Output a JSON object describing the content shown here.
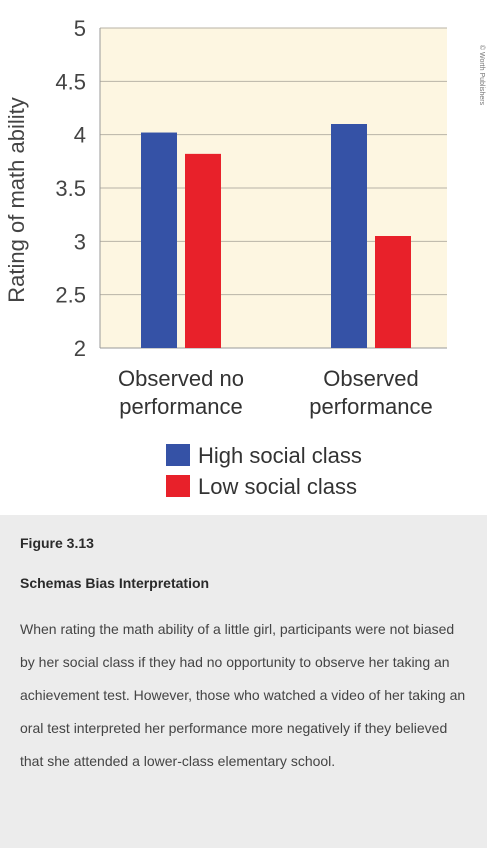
{
  "chart_data": {
    "type": "bar",
    "categories": [
      [
        "Observed no",
        "performance"
      ],
      [
        "Observed",
        "performance"
      ]
    ],
    "series": [
      {
        "name": "High social class",
        "color": "#3552a6",
        "values": [
          4.02,
          4.1
        ]
      },
      {
        "name": "Low social class",
        "color": "#e8212a",
        "values": [
          3.82,
          3.05
        ]
      }
    ],
    "ylabel": "Rating of math ability",
    "ylim": [
      2,
      5
    ],
    "yticks": [
      "2",
      "2.5",
      "3",
      "3.5",
      "4",
      "4.5",
      "5"
    ],
    "grid": true,
    "plot_background": "#fdf6e1",
    "legend_position": "bottom"
  },
  "credit": "© Worth Publishers",
  "caption": {
    "figure_number": "Figure 3.13",
    "title": "Schemas Bias Interpretation",
    "text": "When rating the math ability of a little girl, participants were not biased by her social class if they had no opportunity to observe her taking an achievement test. However, those who watched a video of her taking an oral test interpreted her performance more negatively if they believed that she attended a lower-class elementary school."
  }
}
